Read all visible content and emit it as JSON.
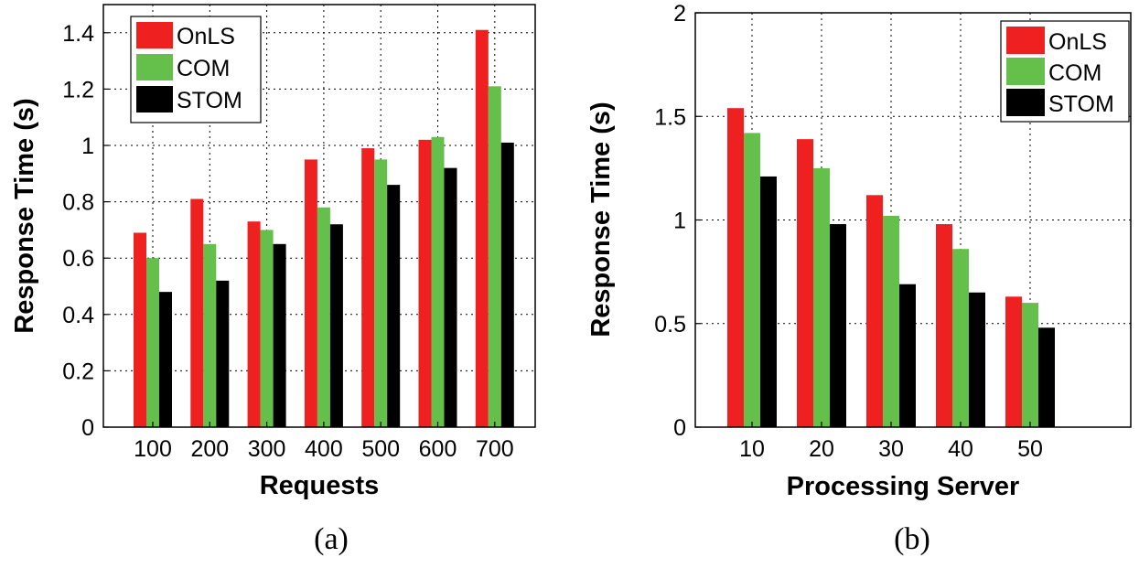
{
  "colors": {
    "OnLS": "#ee2020",
    "COM": "#64c04a",
    "STOM": "#000000"
  },
  "chart_data": [
    {
      "type": "bar",
      "caption": "(a)",
      "xlabel": "Requests",
      "ylabel": "Response Time (s)",
      "categories": [
        "100",
        "200",
        "300",
        "400",
        "500",
        "600",
        "700"
      ],
      "ylim": [
        0,
        1.5
      ],
      "yticks": [
        0,
        0.2,
        0.4,
        0.6,
        0.8,
        1,
        1.2,
        1.4
      ],
      "ytick_labels": [
        "0",
        "0.2",
        "0.4",
        "0.6",
        "0.8",
        "1",
        "1.2",
        "1.4"
      ],
      "grid": true,
      "legend": "top-left",
      "series": [
        {
          "name": "OnLS",
          "values": [
            0.69,
            0.81,
            0.73,
            0.95,
            0.99,
            1.02,
            1.41
          ]
        },
        {
          "name": "COM",
          "values": [
            0.6,
            0.65,
            0.7,
            0.78,
            0.95,
            1.03,
            1.21
          ]
        },
        {
          "name": "STOM",
          "values": [
            0.48,
            0.52,
            0.65,
            0.72,
            0.86,
            0.92,
            1.01
          ]
        }
      ]
    },
    {
      "type": "bar",
      "caption": "(b)",
      "xlabel": "Processing Server",
      "ylabel": "Response Time (s)",
      "categories": [
        "10",
        "20",
        "30",
        "40",
        "50"
      ],
      "ylim": [
        0,
        2
      ],
      "yticks": [
        0,
        0.5,
        1,
        1.5,
        2
      ],
      "ytick_labels": [
        "0",
        "0.5",
        "1",
        "1.5",
        "2"
      ],
      "grid": true,
      "legend": "top-right",
      "series": [
        {
          "name": "OnLS",
          "values": [
            1.54,
            1.39,
            1.12,
            0.98,
            0.63
          ]
        },
        {
          "name": "COM",
          "values": [
            1.42,
            1.25,
            1.02,
            0.86,
            0.6
          ]
        },
        {
          "name": "STOM",
          "values": [
            1.21,
            0.98,
            0.69,
            0.65,
            0.48
          ]
        }
      ]
    }
  ]
}
